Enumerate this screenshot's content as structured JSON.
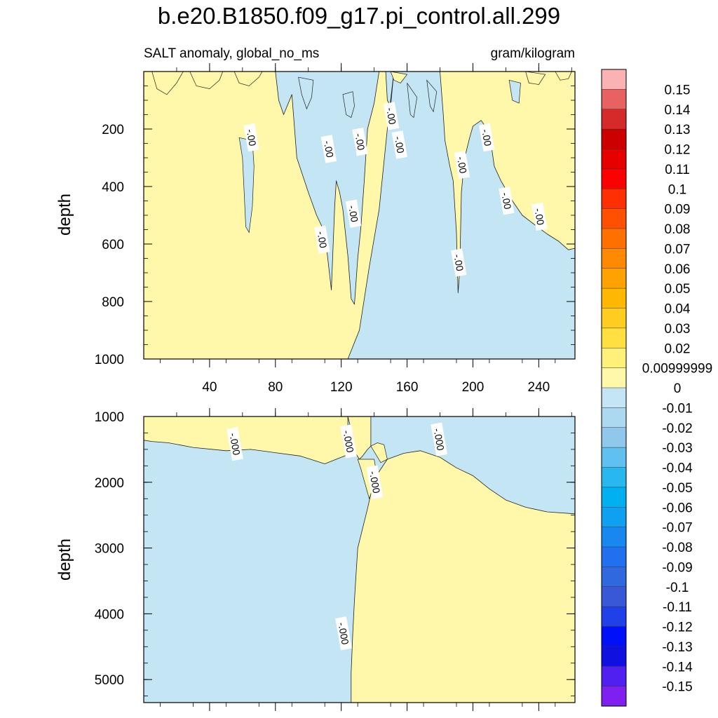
{
  "chart_data": {
    "type": "filled-contour",
    "title": "b.e20.B1850.f09_g17.pi_control.all.299",
    "subtitle_left": "SALT anomaly, global_no_ms",
    "subtitle_right": "gram/kilogram",
    "xlim": [
      0,
      262
    ],
    "x_ticks": [
      "40",
      "80",
      "120",
      "160",
      "200",
      "240"
    ],
    "panels": [
      {
        "name": "upper",
        "ylabel": "depth",
        "ylim": [
          1000,
          0
        ],
        "y_ticks": [
          "200",
          "400",
          "600",
          "800",
          "1000"
        ],
        "contour_labels": [
          {
            "text": "-.00",
            "x": 65,
            "y": 230
          },
          {
            "text": "-.00",
            "x": 112,
            "y": 270
          },
          {
            "text": "-.00",
            "x": 131,
            "y": 245
          },
          {
            "text": "-.00",
            "x": 150,
            "y": 155
          },
          {
            "text": "-.00",
            "x": 155,
            "y": 255
          },
          {
            "text": "-.00",
            "x": 193,
            "y": 325
          },
          {
            "text": "-.00",
            "x": 208,
            "y": 230
          },
          {
            "text": "-.00",
            "x": 220,
            "y": 450
          },
          {
            "text": "-.00",
            "x": 240,
            "y": 505
          },
          {
            "text": "-.00",
            "x": 127,
            "y": 495
          },
          {
            "text": "-.00",
            "x": 108,
            "y": 585
          },
          {
            "text": "-.00",
            "x": 191,
            "y": 665
          }
        ],
        "positive_regions": [
          {
            "name": "west-fresh-boundary-positive",
            "points": [
              [
                0,
                0
              ],
              [
                20,
                0
              ],
              [
                40,
                0
              ],
              [
                60,
                0
              ],
              [
                75,
                0
              ],
              [
                80,
                0
              ],
              [
                82,
                100
              ],
              [
                85,
                150
              ],
              [
                90,
                80
              ],
              [
                93,
                300
              ],
              [
                100,
                420
              ],
              [
                105,
                500
              ],
              [
                110,
                560
              ],
              [
                114,
                760
              ],
              [
                116,
                470
              ],
              [
                117,
                380
              ],
              [
                119,
                420
              ],
              [
                121,
                480
              ],
              [
                124,
                640
              ],
              [
                126,
                790
              ],
              [
                128,
                810
              ],
              [
                130,
                650
              ],
              [
                132,
                540
              ],
              [
                134,
                380
              ],
              [
                136,
                200
              ],
              [
                140,
                110
              ],
              [
                143,
                0
              ],
              [
                147,
                0
              ],
              [
                148,
                100
              ],
              [
                150,
                120
              ],
              [
                152,
                0
              ],
              [
                148,
                200
              ],
              [
                143,
                480
              ],
              [
                137,
                680
              ],
              [
                131,
                900
              ],
              [
                124,
                1000
              ],
              [
                0,
                1000
              ]
            ]
          },
          {
            "name": "east-positive-region",
            "points": [
              [
                180,
                0
              ],
              [
                182,
                150
              ],
              [
                183,
                240
              ],
              [
                186,
                330
              ],
              [
                188,
                380
              ],
              [
                190,
                560
              ],
              [
                191,
                770
              ],
              [
                192,
                690
              ],
              [
                193,
                420
              ],
              [
                195,
                300
              ],
              [
                198,
                230
              ],
              [
                200,
                190
              ],
              [
                205,
                170
              ],
              [
                210,
                210
              ],
              [
                213,
                330
              ],
              [
                217,
                380
              ],
              [
                224,
                450
              ],
              [
                230,
                500
              ],
              [
                238,
                535
              ],
              [
                245,
                565
              ],
              [
                252,
                590
              ],
              [
                258,
                620
              ],
              [
                262,
                615
              ],
              [
                262,
                0
              ]
            ]
          }
        ],
        "negative_patches": [
          {
            "points": [
              [
                58,
                230
              ],
              [
                60,
                300
              ],
              [
                61,
                420
              ],
              [
                62,
                540
              ],
              [
                64,
                560
              ],
              [
                66,
                470
              ],
              [
                67,
                330
              ],
              [
                66,
                240
              ]
            ]
          },
          {
            "points": [
              [
                94,
                20
              ],
              [
                96,
                80
              ],
              [
                99,
                130
              ],
              [
                102,
                90
              ],
              [
                103,
                30
              ]
            ]
          },
          {
            "points": [
              [
                121,
                80
              ],
              [
                123,
                150
              ],
              [
                126,
                160
              ],
              [
                128,
                120
              ],
              [
                127,
                70
              ]
            ]
          },
          {
            "points": [
              [
                160,
                40
              ],
              [
                162,
                150
              ],
              [
                164,
                160
              ],
              [
                166,
                90
              ]
            ]
          },
          {
            "points": [
              [
                172,
                30
              ],
              [
                174,
                120
              ],
              [
                176,
                140
              ],
              [
                178,
                70
              ]
            ]
          },
          {
            "points": [
              [
                222,
                30
              ],
              [
                224,
                100
              ],
              [
                228,
                110
              ],
              [
                229,
                40
              ]
            ]
          }
        ],
        "positive_patches": [
          {
            "points": [
              [
                5,
                0
              ],
              [
                8,
                60
              ],
              [
                14,
                80
              ],
              [
                20,
                40
              ],
              [
                24,
                0
              ]
            ]
          },
          {
            "points": [
              [
                28,
                0
              ],
              [
                32,
                50
              ],
              [
                40,
                60
              ],
              [
                46,
                30
              ],
              [
                48,
                0
              ]
            ]
          },
          {
            "points": [
              [
                55,
                0
              ],
              [
                58,
                40
              ],
              [
                64,
                50
              ],
              [
                70,
                20
              ],
              [
                72,
                0
              ]
            ]
          },
          {
            "points": [
              [
                150,
                0
              ],
              [
                152,
                30
              ],
              [
                156,
                40
              ],
              [
                160,
                10
              ]
            ]
          },
          {
            "points": [
              [
                232,
                0
              ],
              [
                234,
                40
              ],
              [
                240,
                45
              ],
              [
                244,
                10
              ]
            ]
          },
          {
            "points": [
              [
                250,
                0
              ],
              [
                253,
                30
              ],
              [
                258,
                25
              ],
              [
                260,
                0
              ]
            ]
          }
        ]
      },
      {
        "name": "lower",
        "ylabel": "depth",
        "ylim": [
          5350,
          1000
        ],
        "y_ticks": [
          "1000",
          "2000",
          "3000",
          "4000",
          "5000"
        ],
        "contour_labels": [
          {
            "text": "-.000",
            "x": 55,
            "y": 1420
          },
          {
            "text": "-.000",
            "x": 124,
            "y": 1380
          },
          {
            "text": "-.000",
            "x": 140,
            "y": 2000
          },
          {
            "text": "-.000",
            "x": 179,
            "y": 1350
          },
          {
            "text": "-.000",
            "x": 121,
            "y": 4300
          }
        ],
        "positive_regions": [
          {
            "name": "upper-west-positive",
            "points": [
              [
                0,
                1000
              ],
              [
                124,
                1000
              ],
              [
                126,
                1200
              ],
              [
                128,
                1530
              ],
              [
                131,
                1650
              ],
              [
                133,
                1600
              ],
              [
                136,
                1500
              ],
              [
                138,
                1450
              ],
              [
                138,
                1000
              ],
              [
                124,
                1000
              ],
              [
                124,
                1580
              ],
              [
                110,
                1720
              ],
              [
                95,
                1600
              ],
              [
                80,
                1550
              ],
              [
                65,
                1500
              ],
              [
                50,
                1520
              ],
              [
                30,
                1470
              ],
              [
                15,
                1400
              ],
              [
                5,
                1380
              ],
              [
                0,
                1360
              ]
            ]
          },
          {
            "name": "east-positive",
            "points": [
              [
                262,
                2480
              ],
              [
                245,
                2450
              ],
              [
                232,
                2380
              ],
              [
                220,
                2270
              ],
              [
                210,
                2100
              ],
              [
                200,
                1900
              ],
              [
                190,
                1780
              ],
              [
                180,
                1620
              ],
              [
                168,
                1520
              ],
              [
                158,
                1560
              ],
              [
                148,
                1650
              ],
              [
                140,
                1950
              ],
              [
                136,
                2400
              ],
              [
                133,
                2700
              ],
              [
                130,
                3000
              ],
              [
                129,
                3400
              ],
              [
                128,
                3800
              ],
              [
                127,
                4300
              ],
              [
                126,
                4900
              ],
              [
                126,
                5350
              ],
              [
                262,
                5350
              ]
            ]
          }
        ],
        "positive_patches": [
          {
            "points": [
              [
                130,
                1650
              ],
              [
                132,
                1800
              ],
              [
                134,
                1980
              ],
              [
                137,
                2250
              ],
              [
                139,
                2100
              ],
              [
                141,
                1800
              ],
              [
                140,
                1650
              ]
            ]
          },
          {
            "points": [
              [
                138,
                1450
              ],
              [
                142,
                1400
              ],
              [
                146,
                1430
              ],
              [
                148,
                1650
              ],
              [
                144,
                1700
              ]
            ]
          }
        ]
      }
    ],
    "colorbar": {
      "labels": [
        "0.15",
        "0.14",
        "0.13",
        "0.12",
        "0.11",
        "0.1",
        "0.09",
        "0.08",
        "0.07",
        "0.06",
        "0.05",
        "0.04",
        "0.03",
        "0.02",
        "0.00999999",
        "0",
        "-0.01",
        "-0.02",
        "-0.03",
        "-0.04",
        "-0.05",
        "-0.06",
        "-0.07",
        "-0.08",
        "-0.09",
        "-0.1",
        "-0.11",
        "-0.12",
        "-0.13",
        "-0.14",
        "-0.15"
      ],
      "colors": [
        "#fab2b2",
        "#e86262",
        "#d42a2a",
        "#cc0000",
        "#e60000",
        "#ff0000",
        "#ff3000",
        "#ff5000",
        "#ff7000",
        "#ff8a00",
        "#ffa200",
        "#ffb800",
        "#ffcc20",
        "#ffe040",
        "#fff07a",
        "#fff8aa",
        "#c4e6f4",
        "#acd8f0",
        "#90c8ec",
        "#60c0f0",
        "#28b8f0",
        "#00b0f0",
        "#10a0f0",
        "#1888f0",
        "#2070f0",
        "#3068e0",
        "#3858d8",
        "#2040e8",
        "#0010f8",
        "#1010e0",
        "#5020f0",
        "#8020f0"
      ]
    },
    "fill_colors": {
      "positive": "#fff8aa",
      "negative": "#c4e6f4"
    }
  }
}
